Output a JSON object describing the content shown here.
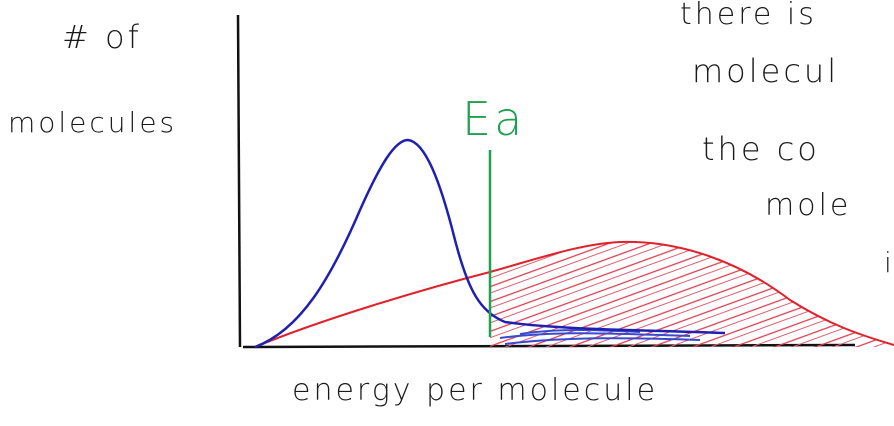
{
  "axis_labels": {
    "y_line1": "# of",
    "y_line2": "molecules",
    "x": "energy per molecule"
  },
  "marker": {
    "label": "Ea"
  },
  "note": {
    "lines": [
      "there is",
      "molecul",
      "the co",
      "mole",
      "i"
    ]
  }
}
